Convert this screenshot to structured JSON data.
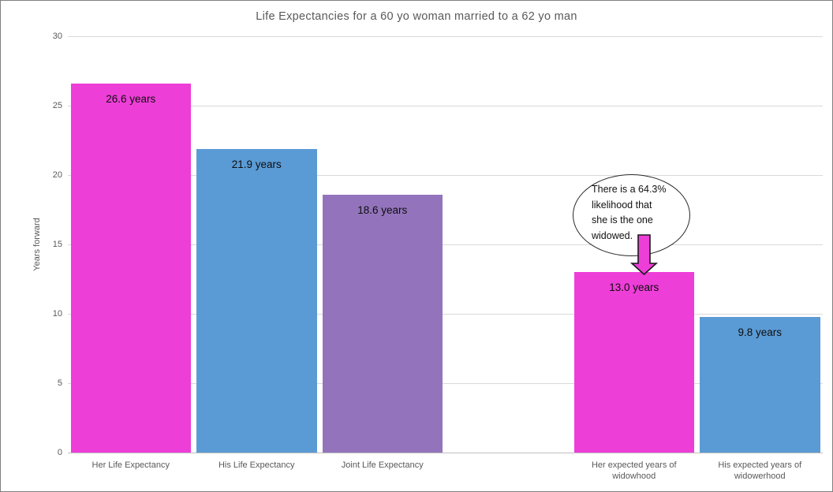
{
  "chart_data": {
    "type": "bar",
    "title": "Life Expectancies for a 60 yo woman married to a 62 yo man",
    "xlabel": "",
    "ylabel": "Years forward",
    "ylim": [
      0,
      30
    ],
    "yticks": [
      0,
      5,
      10,
      15,
      20,
      25,
      30
    ],
    "grid": true,
    "legend": false,
    "slots": 6,
    "bars": [
      {
        "category": "Her Life Expectancy",
        "value": 26.6,
        "label": "26.6 years",
        "color": "#ee3ed8",
        "slot": 0
      },
      {
        "category": "His Life Expectancy",
        "value": 21.9,
        "label": "21.9 years",
        "color": "#5b9bd5",
        "slot": 1
      },
      {
        "category": "Joint Life Expectancy",
        "value": 18.6,
        "label": "18.6 years",
        "color": "#9374bc",
        "slot": 2
      },
      {
        "category": "Her expected years of widowhood",
        "value": 13.0,
        "label": "13.0 years",
        "color": "#ee3ed8",
        "slot": 4
      },
      {
        "category": "His expected years of widowerhood",
        "value": 9.8,
        "label": "9.8 years",
        "color": "#5b9bd5",
        "slot": 5
      }
    ]
  },
  "annotation": {
    "text": "There is a 64.3% likelihood that she is the one widowed.",
    "lines": [
      "There is a 64.3%",
      "likelihood that",
      "she is the one",
      "widowed."
    ],
    "arrow_color": "#ee3ed8",
    "arrow_outline": "#1a1a1a"
  },
  "colors": {
    "magenta": "#ee3ed8",
    "blue": "#5b9bd5",
    "purple": "#9374bc",
    "gridline": "#d9d9d9",
    "axis_text": "#595959"
  }
}
